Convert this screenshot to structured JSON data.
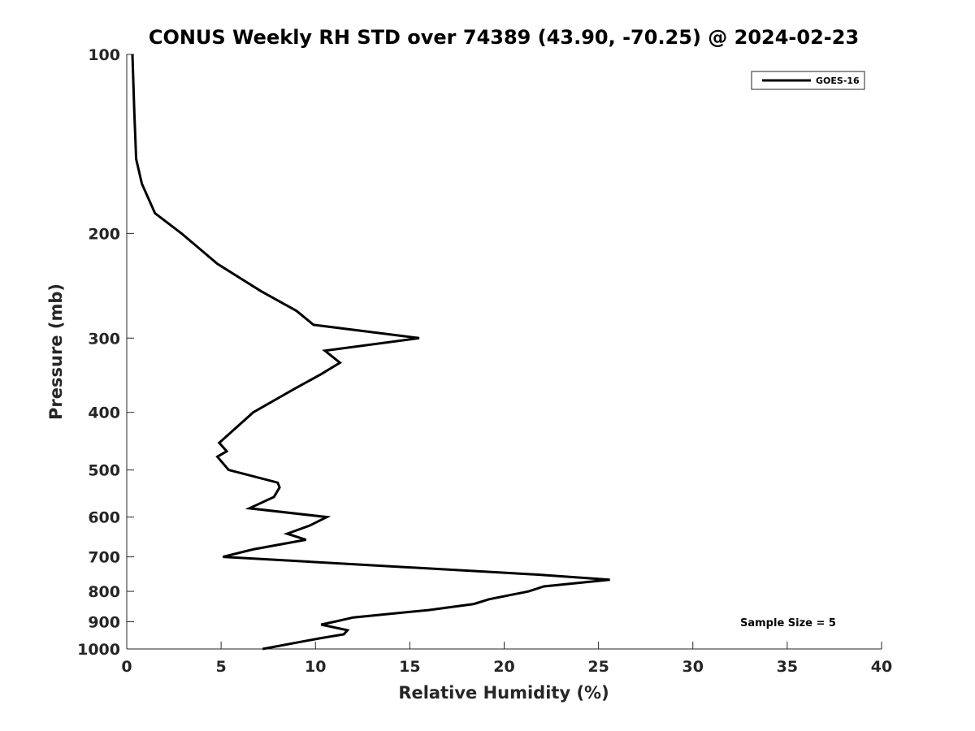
{
  "chart_data": {
    "type": "line",
    "title": "CONUS Weekly RH STD over 74389 (43.90, -70.25) @ 2024-02-23",
    "xlabel": "Relative Humidity (%)",
    "ylabel": "Pressure (mb)",
    "xlim": [
      0,
      40
    ],
    "ylim": [
      100,
      1000
    ],
    "y_scale": "log",
    "y_reversed": true,
    "x_ticks": [
      0,
      5,
      10,
      15,
      20,
      25,
      30,
      35,
      40
    ],
    "y_ticks": [
      100,
      200,
      300,
      400,
      500,
      600,
      700,
      800,
      900,
      1000
    ],
    "grid": false,
    "legend": "top-right",
    "series": [
      {
        "name": "GOES-16",
        "color": "#000000",
        "points": [
          [
            0.3,
            100
          ],
          [
            0.4,
            125
          ],
          [
            0.5,
            150
          ],
          [
            0.8,
            165
          ],
          [
            1.5,
            185
          ],
          [
            2.9,
            200
          ],
          [
            4.8,
            225
          ],
          [
            7.1,
            250
          ],
          [
            9.0,
            270
          ],
          [
            9.9,
            285
          ],
          [
            15.5,
            300
          ],
          [
            10.5,
            315
          ],
          [
            11.3,
            330
          ],
          [
            10.3,
            345
          ],
          [
            8.9,
            365
          ],
          [
            6.7,
            400
          ],
          [
            4.9,
            450
          ],
          [
            5.3,
            465
          ],
          [
            4.8,
            475
          ],
          [
            5.4,
            500
          ],
          [
            8.0,
            525
          ],
          [
            8.1,
            535
          ],
          [
            7.8,
            555
          ],
          [
            6.5,
            580
          ],
          [
            10.6,
            600
          ],
          [
            9.7,
            620
          ],
          [
            8.5,
            640
          ],
          [
            9.5,
            655
          ],
          [
            6.7,
            680
          ],
          [
            5.1,
            700
          ],
          [
            21.8,
            750
          ],
          [
            25.6,
            765
          ],
          [
            22.1,
            785
          ],
          [
            21.3,
            800
          ],
          [
            19.2,
            825
          ],
          [
            18.4,
            840
          ],
          [
            16.0,
            860
          ],
          [
            12.0,
            885
          ],
          [
            11.0,
            900
          ],
          [
            10.3,
            910
          ],
          [
            11.7,
            930
          ],
          [
            11.5,
            945
          ],
          [
            10.2,
            960
          ],
          [
            7.2,
            1000
          ]
        ]
      }
    ],
    "annotations": [
      "Sample Size = 5"
    ]
  }
}
